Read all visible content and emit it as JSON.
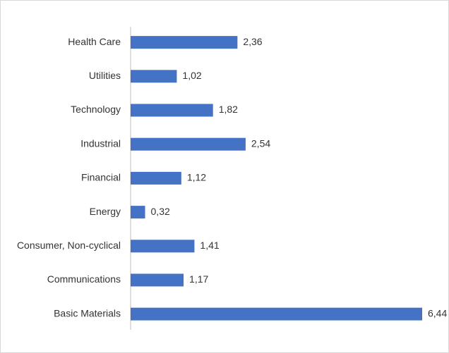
{
  "chart_data": {
    "type": "bar",
    "orientation": "horizontal",
    "categories": [
      "Health Care",
      "Utilities",
      "Technology",
      "Industrial",
      "Financial",
      "Energy",
      "Consumer, Non-cyclical",
      "Communications",
      "Basic Materials"
    ],
    "values": [
      2.36,
      1.02,
      1.82,
      2.54,
      1.12,
      0.32,
      1.41,
      1.17,
      6.44
    ],
    "value_labels": [
      "2,36",
      "1,02",
      "1,82",
      "2,54",
      "1,12",
      "0,32",
      "1,41",
      "1,17",
      "6,44"
    ],
    "color": "#4472c4"
  }
}
